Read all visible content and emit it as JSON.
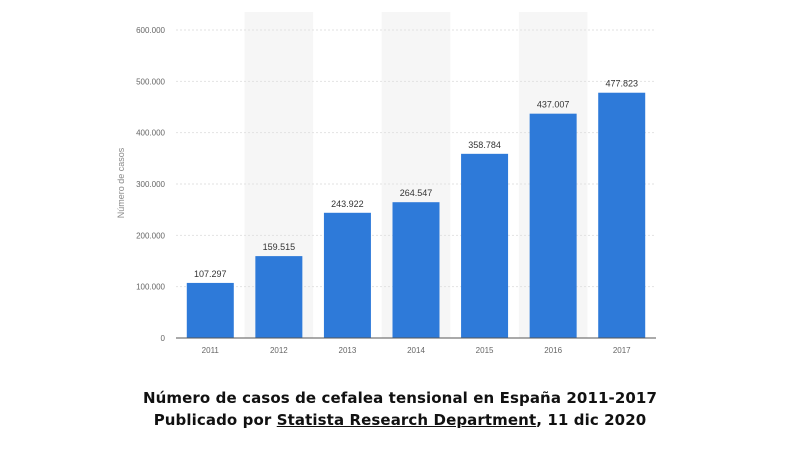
{
  "chart_data": {
    "type": "bar",
    "categories": [
      "2011",
      "2012",
      "2013",
      "2014",
      "2015",
      "2016",
      "2017"
    ],
    "values": [
      107297,
      159515,
      243922,
      264547,
      358784,
      437007,
      477823
    ],
    "value_labels": [
      "107.297",
      "159.515",
      "243.922",
      "264.547",
      "358.784",
      "437.007",
      "477.823"
    ],
    "ylabel": "Número de casos",
    "xlabel": "",
    "ylim": [
      0,
      600000
    ],
    "yticks": [
      0,
      100000,
      200000,
      300000,
      400000,
      500000,
      600000
    ],
    "ytick_labels": [
      "0",
      "100.000",
      "200.000",
      "300.000",
      "400.000",
      "500.000",
      "600.000"
    ],
    "grid": true,
    "legend": "none",
    "bar_color": "#2e7ad9"
  },
  "caption": {
    "title": "Número de casos de cefalea tensional en España 2011-2017",
    "published_prefix": "Publicado por ",
    "publisher": "Statista Research Department",
    "published_suffix": ", 11 dic 2020"
  }
}
